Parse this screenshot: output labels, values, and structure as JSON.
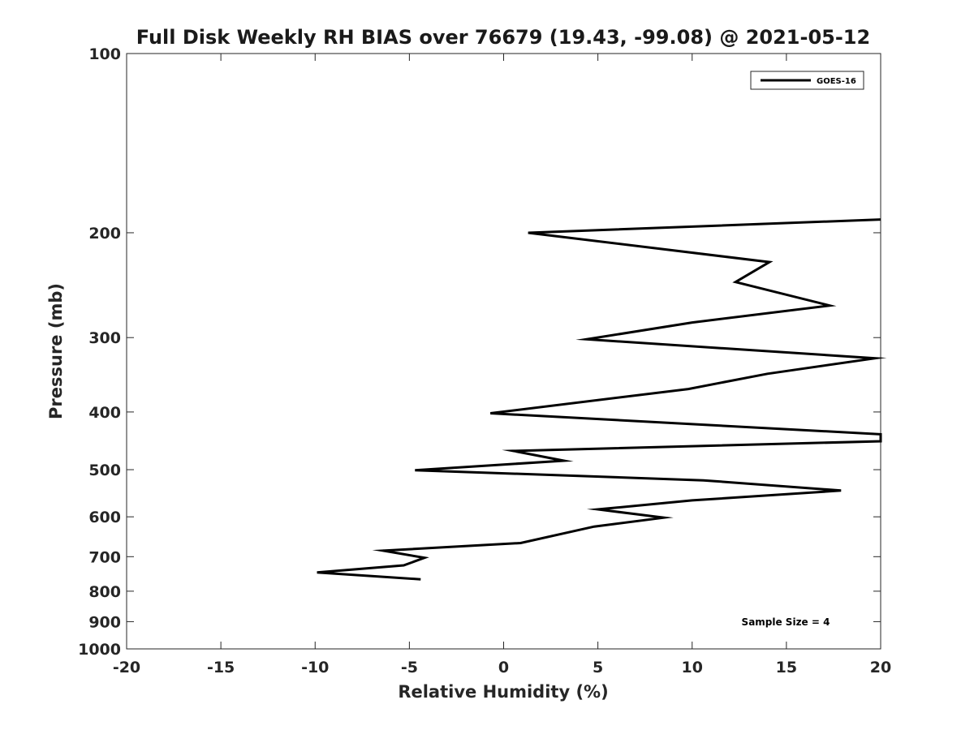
{
  "chart_data": {
    "type": "line",
    "title": "Full Disk Weekly RH BIAS over 76679 (19.43, -99.08) @ 2021-05-12",
    "xlabel": "Relative Humidity (%)",
    "ylabel": "Pressure (mb)",
    "xlim": [
      -20,
      20
    ],
    "ylim": [
      100,
      1000
    ],
    "y_scale": "log",
    "y_inverted": true,
    "grid": false,
    "legend_position": "top-right",
    "x_ticks": [
      -20,
      -15,
      -10,
      -5,
      0,
      5,
      10,
      15,
      20
    ],
    "x_tick_labels": [
      "-20",
      "-15",
      "-10",
      "-5",
      "0",
      "5",
      "10",
      "15",
      "20"
    ],
    "y_ticks": [
      100,
      200,
      300,
      400,
      500,
      600,
      700,
      800,
      900,
      1000
    ],
    "y_tick_labels": [
      "100",
      "200",
      "300",
      "400",
      "500",
      "600",
      "700",
      "800",
      "900",
      "1000"
    ],
    "series": [
      {
        "name": "GOES-16",
        "color": "#000000",
        "points": [
          {
            "x": 20.0,
            "y": 190
          },
          {
            "x": 1.3,
            "y": 200
          },
          {
            "x": 14.1,
            "y": 224
          },
          {
            "x": 12.3,
            "y": 242
          },
          {
            "x": 17.3,
            "y": 265
          },
          {
            "x": 10.0,
            "y": 283
          },
          {
            "x": 4.4,
            "y": 302
          },
          {
            "x": 19.7,
            "y": 325
          },
          {
            "x": 14.0,
            "y": 345
          },
          {
            "x": 9.8,
            "y": 366
          },
          {
            "x": -0.7,
            "y": 402
          },
          {
            "x": 20.0,
            "y": 436
          },
          {
            "x": 20.0,
            "y": 448
          },
          {
            "x": 0.5,
            "y": 465
          },
          {
            "x": 3.2,
            "y": 483
          },
          {
            "x": -4.7,
            "y": 501
          },
          {
            "x": 10.6,
            "y": 521
          },
          {
            "x": 17.9,
            "y": 542
          },
          {
            "x": 10.0,
            "y": 563
          },
          {
            "x": 5.0,
            "y": 583
          },
          {
            "x": 8.5,
            "y": 602
          },
          {
            "x": 4.8,
            "y": 623
          },
          {
            "x": 0.9,
            "y": 664
          },
          {
            "x": -6.4,
            "y": 684
          },
          {
            "x": -4.2,
            "y": 703
          },
          {
            "x": -5.3,
            "y": 724
          },
          {
            "x": -9.9,
            "y": 744
          },
          {
            "x": -4.4,
            "y": 764
          }
        ]
      }
    ],
    "annotation": "Sample Size = 4"
  }
}
